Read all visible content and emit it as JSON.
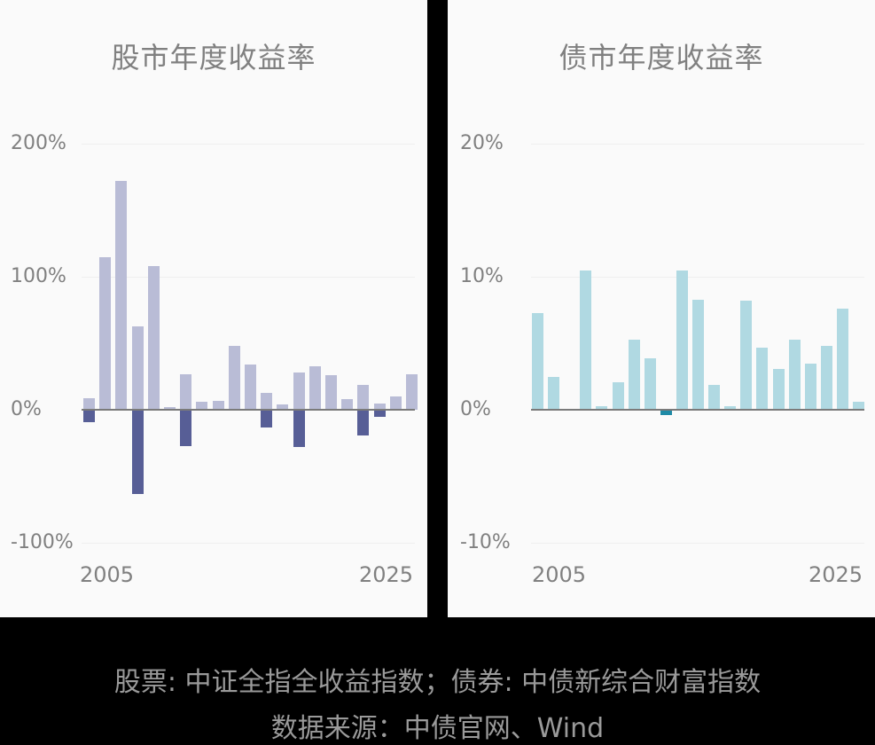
{
  "chart_data": [
    {
      "type": "bar",
      "title": "股市年度收益率",
      "xlabel": "",
      "ylabel": "",
      "ylim": [
        -100,
        200
      ],
      "yticks": [
        "200%",
        "100%",
        "0%",
        "-100%"
      ],
      "xtick_labels": [
        "2005",
        "2025"
      ],
      "grid": true,
      "legend": "none",
      "categories": [
        "2005",
        "2006",
        "2007",
        "2008",
        "2009",
        "2010",
        "2011",
        "2012",
        "2013",
        "2014",
        "2015",
        "2016",
        "2017",
        "2018",
        "2019",
        "2020",
        "2021",
        "2022",
        "2023",
        "2024",
        "2025"
      ],
      "values": [
        -9,
        115,
        172,
        -63,
        108,
        2,
        -27,
        6,
        7,
        48,
        34,
        -13,
        4,
        -28,
        33,
        26,
        8,
        -19,
        -5,
        10,
        27
      ],
      "colors": {
        "positive_or_abs": "#b9bcd6",
        "negative": "#575e96"
      }
    },
    {
      "type": "bar",
      "title": "债市年度收益率",
      "xlabel": "",
      "ylabel": "",
      "ylim": [
        -10,
        20
      ],
      "yticks": [
        "20%",
        "10%",
        "0%",
        "-10%"
      ],
      "xtick_labels": [
        "2005",
        "2025"
      ],
      "grid": true,
      "legend": "none",
      "categories": [
        "2005",
        "2006",
        "2007",
        "2008",
        "2009",
        "2010",
        "2011",
        "2012",
        "2013",
        "2014",
        "2015",
        "2016",
        "2017",
        "2018",
        "2019",
        "2020",
        "2021",
        "2022",
        "2023",
        "2024",
        "2025"
      ],
      "values": [
        7.3,
        2.5,
        0.0,
        10.5,
        0.3,
        2.1,
        5.3,
        3.9,
        -0.4,
        10.5,
        8.3,
        1.9,
        0.3,
        8.2,
        4.7,
        3.1,
        5.3,
        3.5,
        4.8,
        7.6,
        0.6
      ],
      "colors": {
        "positive_or_abs": "#b0d9e2",
        "negative": "#1f8aa6"
      }
    }
  ],
  "left": {
    "title": "股市年度收益率",
    "yticks": [
      "200%",
      "100%",
      "0%",
      "-100%"
    ],
    "xstart": "2005",
    "xend": "2025"
  },
  "right": {
    "title": "债市年度收益率",
    "yticks": [
      "20%",
      "10%",
      "0%",
      "-10%"
    ],
    "xstart": "2005",
    "xend": "2025"
  },
  "footer": {
    "line1": "股票: 中证全指全收益指数；债券: 中债新综合财富指数",
    "line2": "数据来源：中债官网、Wind"
  }
}
